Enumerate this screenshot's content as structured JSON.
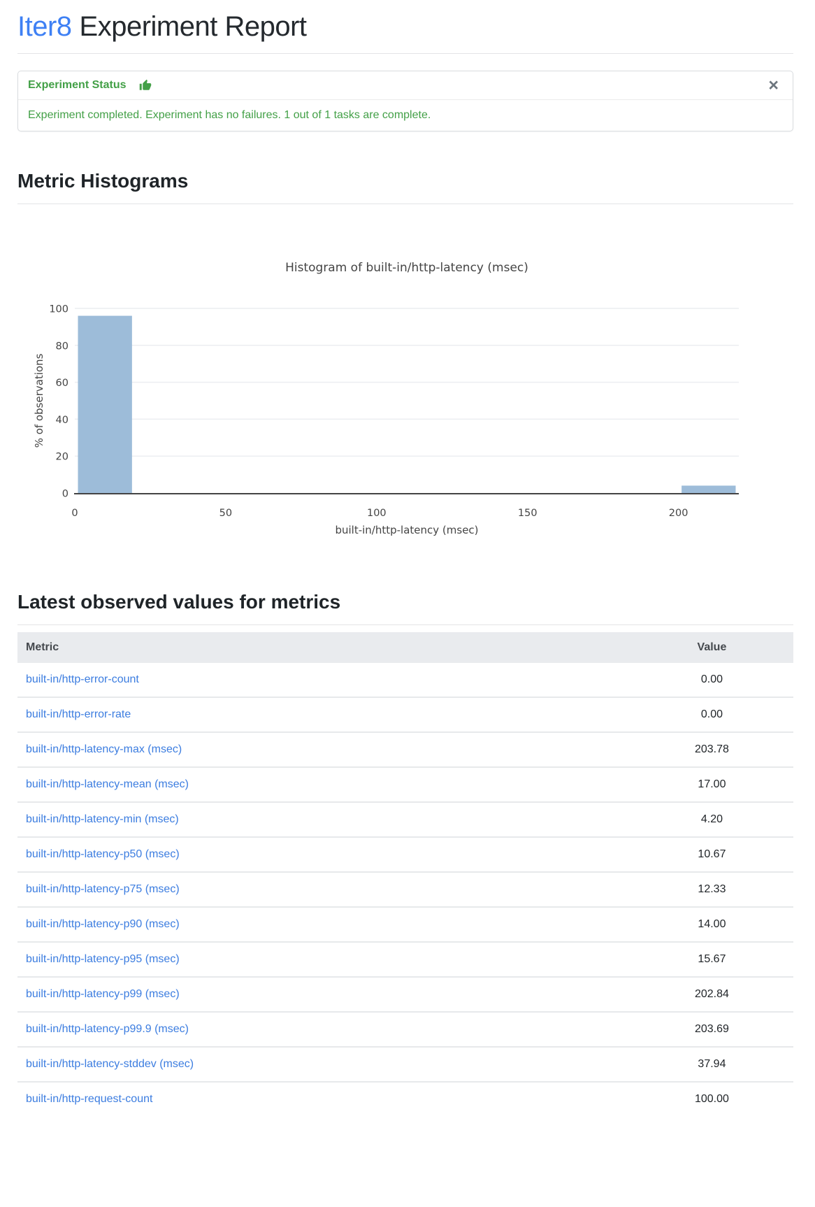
{
  "page": {
    "title_brand": "Iter8",
    "title_rest": "Experiment Report"
  },
  "status_card": {
    "title": "Experiment Status",
    "icon": "thumbs-up-icon",
    "close_label": "×",
    "message": "Experiment completed. Experiment has no failures. 1 out of 1 tasks are complete.",
    "accent_color": "#43a047"
  },
  "sections": {
    "histograms_heading": "Metric Histograms",
    "latest_heading": "Latest observed values for metrics"
  },
  "chart_data": {
    "type": "bar",
    "subtype": "histogram",
    "title": "Histogram of built-in/http-latency (msec)",
    "xlabel": "built-in/http-latency (msec)",
    "ylabel": "% of observations",
    "bins": [
      {
        "x0": 0,
        "x1": 20,
        "pct": 96
      },
      {
        "x0": 200,
        "x1": 220,
        "pct": 4
      }
    ],
    "xticks": [
      0,
      50,
      100,
      150,
      200
    ],
    "yticks": [
      0,
      20,
      40,
      60,
      80,
      100
    ],
    "xlim": [
      0,
      220
    ],
    "ylim": [
      0,
      100
    ],
    "bar_color": "#9dbcd9",
    "grid": true,
    "legend": false
  },
  "table": {
    "columns": [
      "Metric",
      "Value"
    ],
    "rows": [
      {
        "metric": "built-in/http-error-count",
        "value": "0.00"
      },
      {
        "metric": "built-in/http-error-rate",
        "value": "0.00"
      },
      {
        "metric": "built-in/http-latency-max (msec)",
        "value": "203.78"
      },
      {
        "metric": "built-in/http-latency-mean (msec)",
        "value": "17.00"
      },
      {
        "metric": "built-in/http-latency-min (msec)",
        "value": "4.20"
      },
      {
        "metric": "built-in/http-latency-p50 (msec)",
        "value": "10.67"
      },
      {
        "metric": "built-in/http-latency-p75 (msec)",
        "value": "12.33"
      },
      {
        "metric": "built-in/http-latency-p90 (msec)",
        "value": "14.00"
      },
      {
        "metric": "built-in/http-latency-p95 (msec)",
        "value": "15.67"
      },
      {
        "metric": "built-in/http-latency-p99 (msec)",
        "value": "202.84"
      },
      {
        "metric": "built-in/http-latency-p99.9 (msec)",
        "value": "203.69"
      },
      {
        "metric": "built-in/http-latency-stddev (msec)",
        "value": "37.94"
      },
      {
        "metric": "built-in/http-request-count",
        "value": "100.00"
      }
    ]
  }
}
